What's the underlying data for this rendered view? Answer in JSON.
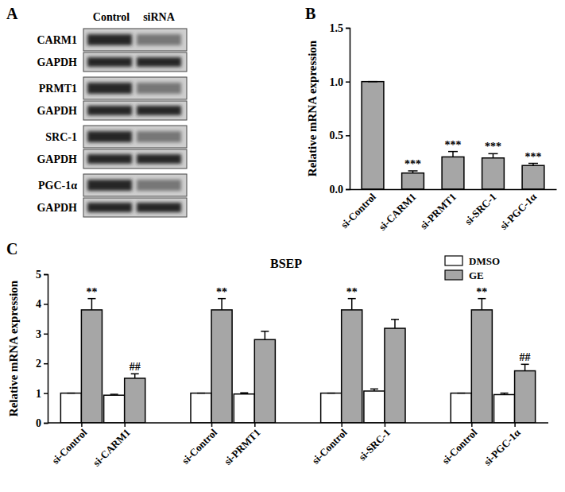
{
  "blot": {
    "panel_label": "A",
    "columns": [
      "Control",
      "siRNA"
    ],
    "rows": [
      "CARM1",
      "GAPDH",
      "PRMT1",
      "GAPDH",
      "SRC-1",
      "GAPDH",
      "PGC-1α",
      "GAPDH"
    ]
  },
  "chart_data": [
    {
      "type": "bar",
      "panel_label": "B",
      "y_label": "Relative mRNA expression",
      "categories": [
        "si-Control",
        "si-CARM1",
        "si-PRMT1",
        "si-SRC-1",
        "si-PGC-1α"
      ],
      "values": [
        1.0,
        0.15,
        0.3,
        0.29,
        0.22
      ],
      "errors": [
        0,
        0.02,
        0.05,
        0.04,
        0.02
      ],
      "annotations": [
        null,
        "***",
        "***",
        "***",
        "***"
      ],
      "color": "#a6a6a6",
      "ylim": [
        0,
        1.5
      ],
      "yticks": [
        {
          "value": 0,
          "label": "0.0"
        },
        {
          "value": 0.5,
          "label": "0.5"
        },
        {
          "value": 1,
          "label": "1.0"
        },
        {
          "value": 1.5,
          "label": "1.5"
        }
      ]
    },
    {
      "type": "bar",
      "panel_label": "C",
      "title": "BSEP",
      "y_label": "Relative mRNA expression",
      "categories": [
        "si-Control",
        "si-CARM1",
        "si-Control",
        "si-PRMT1",
        "si-Control",
        "si-SRC-1",
        "si-Control",
        "si-PGC-1α"
      ],
      "series": [
        {
          "name": "DMSO",
          "color": "#ffffff",
          "values": [
            1,
            0.93,
            1,
            0.97,
            1,
            1.07,
            1,
            0.95
          ],
          "errors": [
            0,
            0.03,
            0,
            0.04,
            0,
            0.07,
            0,
            0.05
          ]
        },
        {
          "name": "GE",
          "color": "#a6a6a6",
          "values": [
            3.8,
            1.5,
            3.8,
            2.8,
            3.8,
            3.18,
            3.8,
            1.75
          ],
          "errors": [
            0.38,
            0.15,
            0.38,
            0.28,
            0.38,
            0.3,
            0.38,
            0.22
          ],
          "annotations": [
            "**",
            "##",
            "**",
            null,
            "**",
            null,
            "**",
            "##"
          ]
        }
      ],
      "legend": "top-right",
      "ylim": [
        0,
        5
      ],
      "yticks": [
        0,
        1,
        2,
        3,
        4,
        5
      ]
    }
  ]
}
